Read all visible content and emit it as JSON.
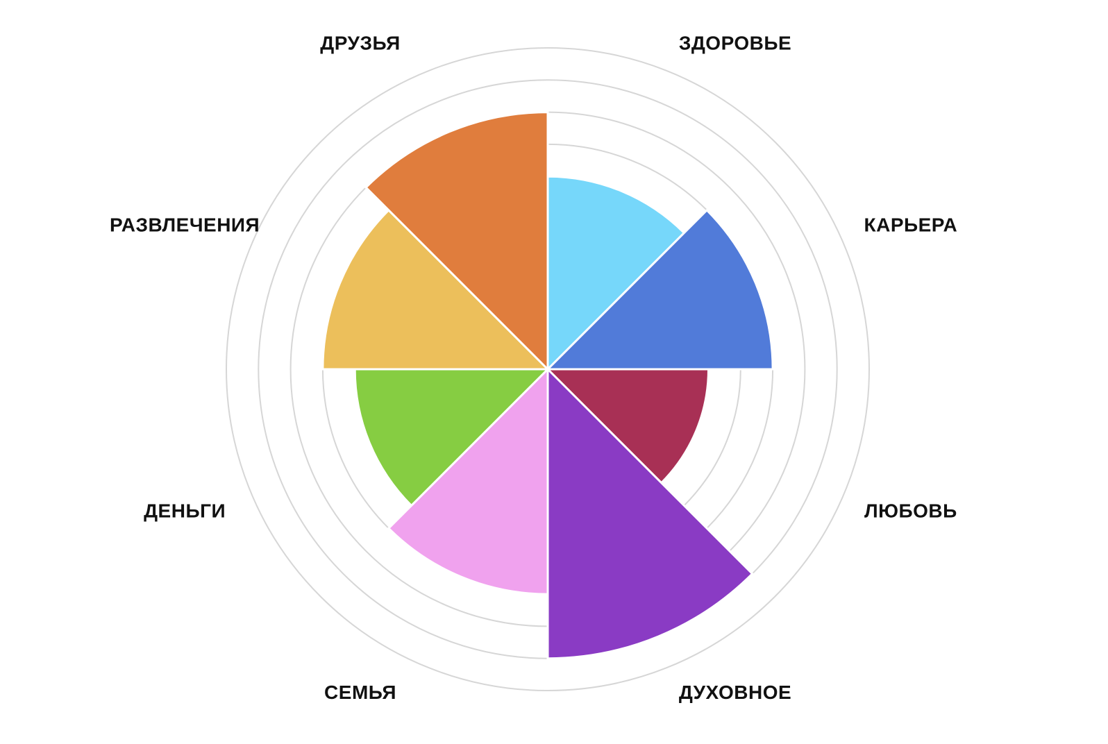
{
  "chart_data": {
    "type": "polar",
    "categories": [
      "ЗДОРОВЬЕ",
      "КАРЬЕРА",
      "ЛЮБОВЬ",
      "ДУХОВНОЕ",
      "СЕМЬЯ",
      "ДЕНЬГИ",
      "РАЗВЛЕЧЕНИЯ",
      "ДРУЗЬЯ"
    ],
    "values": [
      6,
      7,
      5,
      9,
      7,
      6,
      7,
      8
    ],
    "colors": [
      "#76d7fa",
      "#517bd9",
      "#a83055",
      "#8a3bc4",
      "#f0a2ee",
      "#86cd42",
      "#ecbf5b",
      "#e07d3d"
    ],
    "rlim": [
      0,
      10
    ],
    "rticks": [
      1,
      2,
      3,
      4,
      5,
      6,
      7,
      8,
      9,
      10
    ],
    "grid": true
  }
}
